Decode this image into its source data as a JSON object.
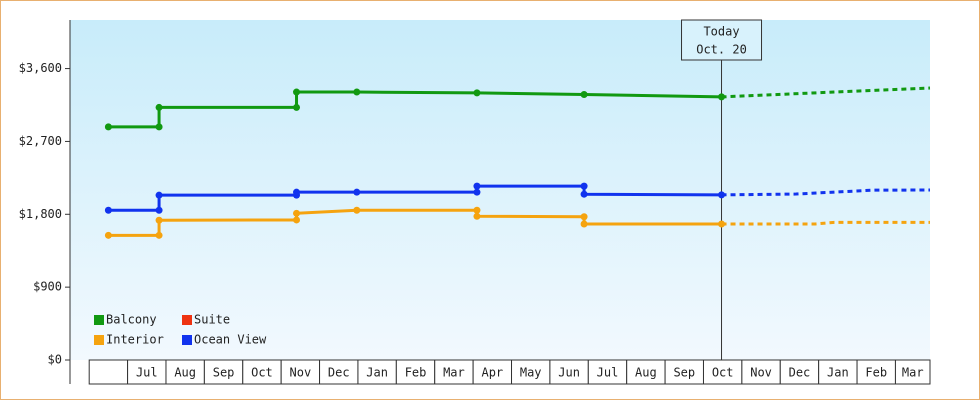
{
  "chart_data": {
    "type": "line",
    "categories": [
      "",
      "Jul",
      "Aug",
      "Sep",
      "Oct",
      "Nov",
      "Dec",
      "Jan",
      "Feb",
      "Mar",
      "Apr",
      "May",
      "Jun",
      "Jul",
      "Aug",
      "Sep",
      "Oct",
      "Nov",
      "Dec",
      "Jan",
      "Feb",
      "Mar"
    ],
    "xlim": [
      -1.5,
      20.9
    ],
    "ylim": [
      0,
      4200
    ],
    "yticks": [
      {
        "value": 0,
        "label": "$0"
      },
      {
        "value": 900,
        "label": "$900"
      },
      {
        "value": 1800,
        "label": "$1,800"
      },
      {
        "value": 2700,
        "label": "$2,700"
      },
      {
        "value": 3600,
        "label": "$3,600"
      }
    ],
    "annotation": {
      "x": 15.47,
      "lines": [
        "Today",
        "Oct. 20"
      ]
    },
    "series": [
      {
        "name": "Balcony",
        "color": "#119911",
        "x": [
          -0.5,
          0.82,
          0.82,
          4.4,
          4.4,
          5.97,
          9.1,
          11.89,
          15.47
        ],
        "values": [
          2880,
          2880,
          3120,
          3120,
          3310,
          3310,
          3300,
          3280,
          3250
        ],
        "forecast_x": [
          15.47,
          18.41,
          20.9
        ],
        "forecast_values": [
          3250,
          3310,
          3360
        ]
      },
      {
        "name": "Suite",
        "color": "#ee3311",
        "x": [],
        "values": [],
        "forecast_x": [],
        "forecast_values": []
      },
      {
        "name": "Interior",
        "color": "#f5a30f",
        "x": [
          -0.5,
          0.82,
          0.82,
          4.4,
          4.4,
          5.97,
          9.1,
          9.1,
          11.89,
          11.89,
          15.47
        ],
        "values": [
          1540,
          1540,
          1726,
          1730,
          1812,
          1850,
          1850,
          1775,
          1770,
          1680,
          1680
        ],
        "forecast_x": [
          15.47,
          17.91,
          18.41,
          20.9
        ],
        "forecast_values": [
          1680,
          1680,
          1700,
          1700
        ]
      },
      {
        "name": "Ocean View",
        "color": "#1133ee",
        "x": [
          -0.5,
          0.82,
          0.82,
          4.4,
          4.4,
          5.97,
          9.1,
          9.1,
          11.89,
          11.89,
          15.47
        ],
        "values": [
          1850,
          1850,
          2036,
          2036,
          2073,
          2073,
          2073,
          2148,
          2148,
          2048,
          2040
        ],
        "forecast_x": [
          15.47,
          17.41,
          19.41,
          20.9
        ],
        "forecast_values": [
          2040,
          2050,
          2098,
          2100
        ]
      }
    ]
  }
}
